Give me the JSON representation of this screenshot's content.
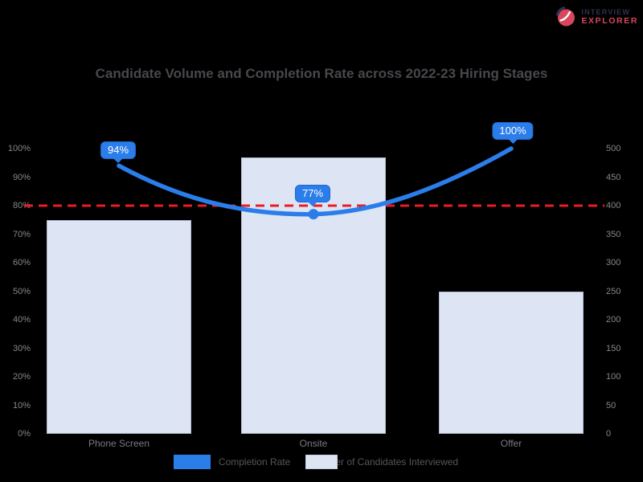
{
  "page": {
    "background": "#000000"
  },
  "logo": {
    "icon": "circle-swoosh-logo-icon",
    "line1": "INTERVIEW",
    "line2": "EXPLORER",
    "colors": {
      "navy": "#2e3150",
      "red": "#d9465c"
    }
  },
  "chart_data": {
    "type": "combo-bar-line",
    "title": "Candidate Volume and Completion Rate across 2022-23 Hiring Stages",
    "categories": [
      "Phone Screen",
      "Onsite",
      "Offer"
    ],
    "series": [
      {
        "name": "Completion Rate",
        "type": "line",
        "axis": "left",
        "unit": "%",
        "values": [
          94,
          77,
          100
        ],
        "point_labels": [
          "94%",
          "77%",
          "100%"
        ],
        "color": "#2b7de9"
      },
      {
        "name": "Number of Candidates Interviewed",
        "type": "bar",
        "axis": "right",
        "values": [
          375,
          485,
          250
        ],
        "fill": "#dde4f4",
        "border": "#b3bace"
      }
    ],
    "threshold_line": {
      "axis": "left",
      "value": 80,
      "color": "#ea1c24",
      "style": "dashed"
    },
    "left_axis": {
      "min": 0,
      "max": 100,
      "tick_labels": [
        "100%",
        "90%",
        "80%",
        "70%",
        "60%",
        "50%",
        "40%",
        "30%",
        "20%",
        "10%",
        "0%"
      ]
    },
    "right_axis": {
      "min": 0,
      "max": 500,
      "tick_labels": [
        "500",
        "450",
        "400",
        "350",
        "300",
        "250",
        "200",
        "150",
        "100",
        "50",
        "0"
      ]
    },
    "grid": false,
    "legend": {
      "position": "bottom",
      "items": [
        {
          "label": "Completion Rate",
          "swatch": "#2b7de9",
          "kind": "line"
        },
        {
          "label": "Number of Candidates Interviewed",
          "swatch": "#dde4f4",
          "kind": "bar"
        }
      ]
    }
  }
}
